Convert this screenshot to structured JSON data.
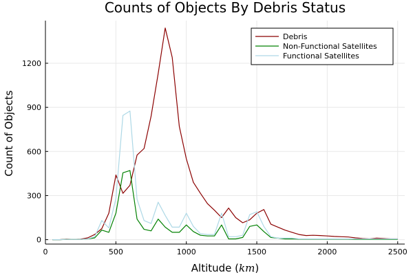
{
  "chart_data": {
    "type": "line",
    "title": "Counts of Objects By Debris Status",
    "xlabel": "Altitude (",
    "xlabel_unit": "km",
    "xlabel_suffix": ")",
    "ylabel": "Count of Objects",
    "xlim": [
      0,
      2550
    ],
    "ylim": [
      -30,
      1490
    ],
    "grid": true,
    "legend_position": "top-right",
    "x_ticks": [
      0,
      500,
      1000,
      1500,
      2000,
      2500
    ],
    "y_ticks": [
      0,
      300,
      600,
      900,
      1200
    ],
    "x": [
      50,
      100,
      150,
      200,
      250,
      300,
      350,
      400,
      450,
      500,
      550,
      600,
      650,
      700,
      750,
      800,
      850,
      900,
      950,
      1000,
      1050,
      1100,
      1150,
      1200,
      1250,
      1300,
      1350,
      1400,
      1450,
      1500,
      1550,
      1600,
      1650,
      1700,
      1750,
      1800,
      1850,
      1900,
      1950,
      2000,
      2050,
      2100,
      2150,
      2200,
      2250,
      2300,
      2350,
      2400,
      2450,
      2500
    ],
    "series": [
      {
        "name": "Debris",
        "color": "#8b0000",
        "values": [
          0,
          0,
          3,
          2,
          3,
          12,
          35,
          75,
          180,
          440,
          315,
          370,
          575,
          620,
          840,
          1130,
          1440,
          1240,
          770,
          550,
          390,
          315,
          245,
          200,
          150,
          215,
          150,
          115,
          135,
          180,
          205,
          105,
          85,
          65,
          50,
          35,
          28,
          30,
          28,
          25,
          22,
          20,
          18,
          12,
          8,
          5,
          10,
          8,
          5,
          5
        ]
      },
      {
        "name": "Non-Functional Satellites",
        "color": "#008000",
        "values": [
          0,
          0,
          2,
          2,
          2,
          5,
          12,
          65,
          50,
          180,
          455,
          470,
          140,
          70,
          60,
          140,
          85,
          50,
          50,
          100,
          55,
          30,
          25,
          25,
          100,
          5,
          5,
          15,
          90,
          100,
          55,
          15,
          10,
          5,
          5,
          3,
          3,
          3,
          3,
          3,
          3,
          3,
          3,
          2,
          2,
          2,
          2,
          2,
          2,
          2
        ]
      },
      {
        "name": "Functional Satellites",
        "color": "#add8e6",
        "values": [
          0,
          0,
          2,
          2,
          2,
          5,
          20,
          130,
          80,
          280,
          845,
          875,
          275,
          130,
          110,
          255,
          165,
          85,
          85,
          180,
          90,
          40,
          35,
          35,
          180,
          20,
          20,
          30,
          170,
          190,
          90,
          20,
          10,
          10,
          10,
          5,
          5,
          5,
          5,
          5,
          5,
          5,
          5,
          5,
          5,
          5,
          5,
          5,
          5,
          5
        ]
      }
    ]
  }
}
